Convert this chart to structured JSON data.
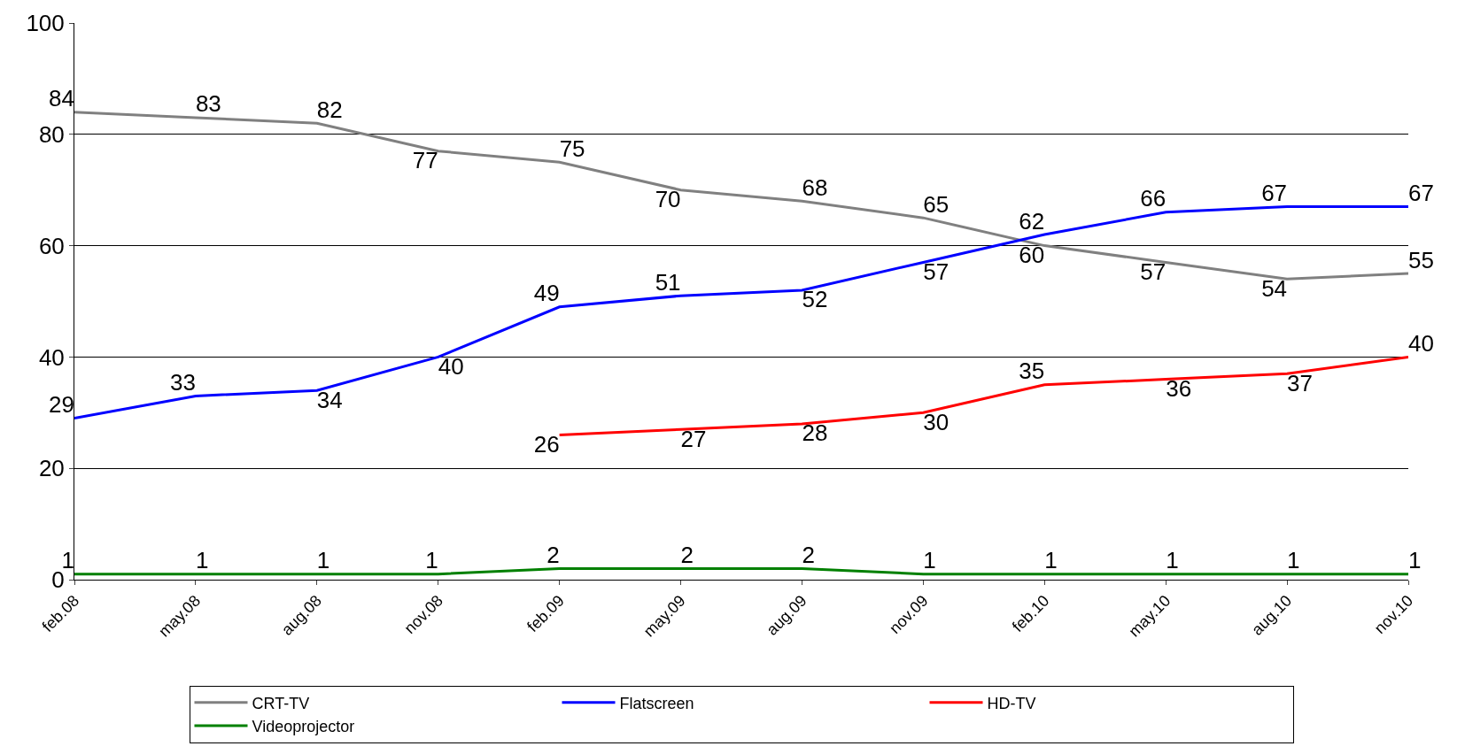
{
  "chart_data": {
    "type": "line",
    "categories": [
      "feb.08",
      "may.08",
      "aug.08",
      "nov.08",
      "feb.09",
      "may.09",
      "aug.09",
      "nov.09",
      "feb.10",
      "may.10",
      "aug.10",
      "nov.10"
    ],
    "series": [
      {
        "name": "CRT-TV",
        "color": "#808080",
        "values": [
          84,
          83,
          82,
          77,
          75,
          70,
          68,
          65,
          60,
          57,
          54,
          55
        ]
      },
      {
        "name": "Flatscreen",
        "color": "#0000ff",
        "values": [
          29,
          33,
          34,
          40,
          49,
          51,
          52,
          57,
          62,
          66,
          67,
          67
        ]
      },
      {
        "name": "HD-TV",
        "color": "#ff0000",
        "values": [
          null,
          null,
          null,
          null,
          26,
          27,
          28,
          30,
          35,
          36,
          37,
          40
        ]
      },
      {
        "name": "Videoprojector",
        "color": "#008000",
        "values": [
          1,
          1,
          1,
          1,
          2,
          2,
          2,
          1,
          1,
          1,
          1,
          1
        ]
      }
    ],
    "ylim": [
      0,
      100
    ],
    "yticks": [
      0,
      20,
      40,
      60,
      80,
      100
    ],
    "grid": "y",
    "legend": "bottom",
    "data_labels": true,
    "marker": "none",
    "line_style": "solid"
  }
}
